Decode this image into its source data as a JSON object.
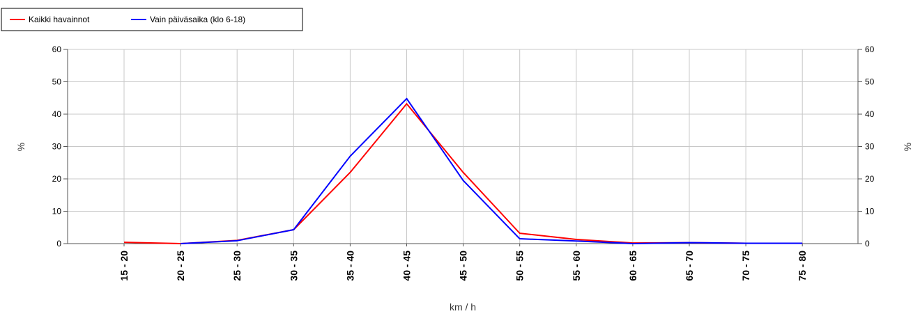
{
  "chart_data": {
    "type": "line",
    "categories": [
      "15 - 20",
      "20 - 25",
      "25 - 30",
      "30 - 35",
      "35 - 40",
      "40 - 45",
      "45 - 50",
      "50 - 55",
      "55 - 60",
      "60 - 65",
      "65 - 70",
      "70 - 75",
      "75 - 80"
    ],
    "series": [
      {
        "name": "Kaikki havainnot",
        "color": "#ff0000",
        "values": [
          0.4,
          0.0,
          1.0,
          4.3,
          22.0,
          43.2,
          22.0,
          3.2,
          1.3,
          0.2,
          0.3,
          0.1,
          0.1
        ]
      },
      {
        "name": "Vain päiväsaika (klo 6-18)",
        "color": "#0000ff",
        "values": [
          null,
          0.0,
          0.9,
          4.3,
          27.0,
          44.8,
          19.5,
          1.5,
          0.8,
          0.0,
          0.3,
          0.1,
          0.1
        ]
      }
    ],
    "xlabel": "km / h",
    "ylabel": "%",
    "ylabel_right": "%",
    "ylim": [
      0,
      60
    ],
    "yticks": [
      0,
      10,
      20,
      30,
      40,
      50,
      60
    ],
    "grid": true,
    "legend_position": "top-left",
    "gridline_color": "#c8c8c8",
    "axis_color": "#555555"
  }
}
